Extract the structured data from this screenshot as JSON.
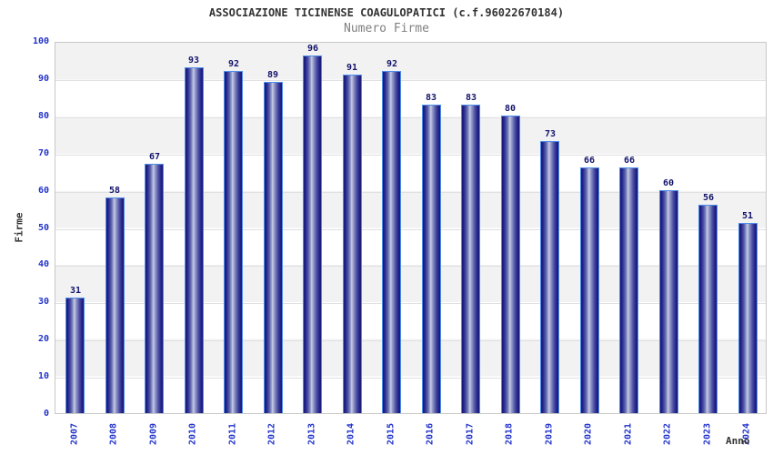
{
  "chart_data": {
    "type": "bar",
    "title": "ASSOCIAZIONE TICINENSE COAGULOPATICI (c.f.96022670184)",
    "subtitle": "Numero Firme",
    "xlabel": "Anno",
    "ylabel": "Firme",
    "categories": [
      "2007",
      "2008",
      "2009",
      "2010",
      "2011",
      "2012",
      "2013",
      "2014",
      "2015",
      "2016",
      "2017",
      "2018",
      "2019",
      "2020",
      "2021",
      "2022",
      "2023",
      "2024"
    ],
    "values": [
      31,
      58,
      67,
      93,
      92,
      89,
      96,
      91,
      92,
      83,
      83,
      80,
      73,
      66,
      66,
      60,
      56,
      51
    ],
    "ylim": [
      0,
      100
    ],
    "ytick_step": 10,
    "grid": true,
    "legend": "none",
    "colors": {
      "bar_dark": "#181874",
      "bar_highlight": "#c9cde8",
      "bar_border": "#4e8de8",
      "tick_label": "#2233cc",
      "value_label": "#13136b",
      "band_gray": "#f2f2f2",
      "gridline": "#e0e0e0",
      "title_text": "#333333",
      "subtitle_text": "#808080"
    }
  }
}
